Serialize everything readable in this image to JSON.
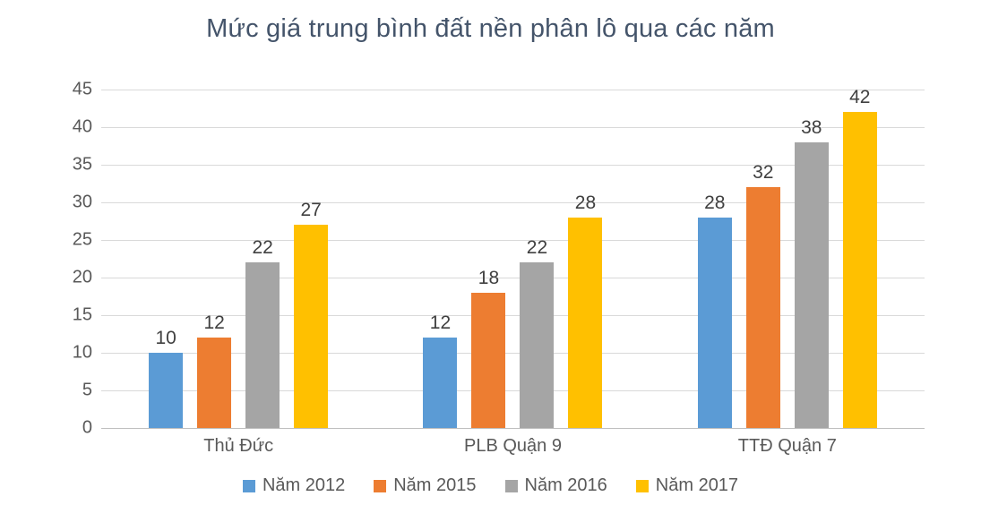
{
  "title": "Mức giá trung bình đất nền phân lô qua các năm",
  "chart_data": {
    "type": "bar",
    "title": "Mức giá trung bình đất nền phân lô qua các năm",
    "xlabel": "",
    "ylabel": "",
    "categories": [
      "Thủ Đức",
      "PLB Quận 9",
      "TTĐ Quận 7"
    ],
    "series": [
      {
        "name": "Năm 2012",
        "color": "#5B9BD5",
        "values": [
          10,
          12,
          28
        ]
      },
      {
        "name": "Năm 2015",
        "color": "#ED7D31",
        "values": [
          12,
          18,
          32
        ]
      },
      {
        "name": "Năm 2016",
        "color": "#A5A5A5",
        "values": [
          22,
          22,
          38
        ]
      },
      {
        "name": "Năm 2017",
        "color": "#FFC000",
        "values": [
          27,
          28,
          42
        ]
      }
    ],
    "ylim": [
      0,
      45
    ],
    "ytick_step": 5,
    "yticks": [
      0,
      5,
      10,
      15,
      20,
      25,
      30,
      35,
      40,
      45
    ],
    "grid": true,
    "legend_position": "bottom",
    "colors": {
      "title_text": "#44546A",
      "axis_text": "#595959",
      "value_label_text": "#404040",
      "gridline": "#D9D9D9",
      "axis_line": "#BFBFBF",
      "background": "#FFFFFF"
    }
  }
}
